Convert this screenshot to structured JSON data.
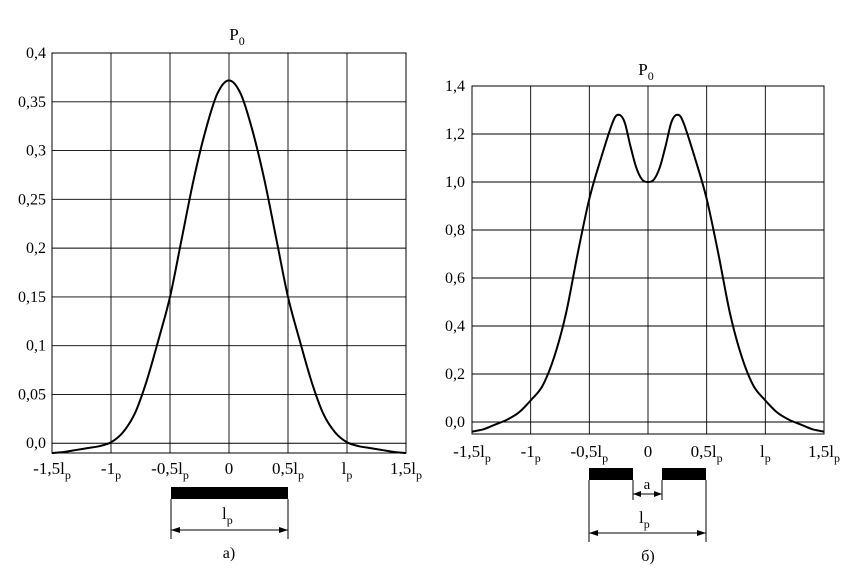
{
  "chart_data": [
    {
      "type": "line",
      "id": "a",
      "title": "P0",
      "xlabel": "",
      "ylabel": "",
      "xlim": [
        -1.5,
        1.5
      ],
      "ylim": [
        -0.01,
        0.4
      ],
      "grid": true,
      "x_ticks": [
        -1.5,
        -1,
        -0.5,
        0,
        0.5,
        1,
        1.5
      ],
      "x_tick_labels": [
        "-1,5l",
        "-1",
        "-0,5l",
        "0",
        "0,5l",
        "l",
        "1,5l"
      ],
      "x_tick_subscripts": [
        "p",
        "p",
        "p",
        "",
        "p",
        "p",
        "p"
      ],
      "y_ticks": [
        0.0,
        0.05,
        0.1,
        0.15,
        0.2,
        0.25,
        0.3,
        0.35,
        0.4
      ],
      "y_tick_labels": [
        "0,0",
        "0,05",
        "0,1",
        "0,15",
        "0,2",
        "0,25",
        "0,3",
        "0,35",
        "0,4"
      ],
      "series": [
        {
          "x": [
            -1.5,
            -1.4,
            -1.3,
            -1.2,
            -1.1,
            -1.0,
            -0.9,
            -0.8,
            -0.7,
            -0.6,
            -0.5,
            -0.4,
            -0.3,
            -0.2,
            -0.1,
            0.0,
            0.1,
            0.2,
            0.3,
            0.4,
            0.5,
            0.6,
            0.7,
            0.8,
            0.9,
            1.0,
            1.1,
            1.2,
            1.3,
            1.4,
            1.5
          ],
          "values": [
            -0.01,
            -0.009,
            -0.007,
            -0.005,
            -0.003,
            0.001,
            0.011,
            0.03,
            0.063,
            0.105,
            0.15,
            0.21,
            0.27,
            0.32,
            0.358,
            0.372,
            0.358,
            0.32,
            0.27,
            0.21,
            0.15,
            0.105,
            0.063,
            0.03,
            0.011,
            0.001,
            -0.003,
            -0.005,
            -0.007,
            -0.009,
            -0.01
          ]
        }
      ],
      "annotation": {
        "dimension_label": "l",
        "dimension_subscript": "p",
        "panel_label": "а)"
      }
    },
    {
      "type": "line",
      "id": "b",
      "title": "P0",
      "xlabel": "",
      "ylabel": "",
      "xlim": [
        -1.5,
        1.5
      ],
      "ylim": [
        -0.05,
        1.4
      ],
      "grid": true,
      "x_ticks": [
        -1.5,
        -1,
        -0.5,
        0,
        0.5,
        1,
        1.5
      ],
      "x_tick_labels": [
        "-1,5l",
        "-1",
        "-0,5l",
        "0",
        "0,5l",
        "l",
        "1,5l"
      ],
      "x_tick_subscripts": [
        "p",
        "p",
        "p",
        "",
        "p",
        "p",
        "p"
      ],
      "y_ticks": [
        0.0,
        0.2,
        0.4,
        0.6,
        0.8,
        1.0,
        1.2,
        1.4
      ],
      "y_tick_labels": [
        "0,0",
        "0,2",
        "0,4",
        "0,6",
        "0,8",
        "1,0",
        "1,2",
        "1,4"
      ],
      "series": [
        {
          "x": [
            -1.5,
            -1.4,
            -1.3,
            -1.2,
            -1.1,
            -1.0,
            -0.9,
            -0.8,
            -0.7,
            -0.6,
            -0.5,
            -0.4,
            -0.3,
            -0.25,
            -0.2,
            -0.15,
            -0.1,
            -0.05,
            0.0,
            0.05,
            0.1,
            0.15,
            0.2,
            0.25,
            0.3,
            0.4,
            0.5,
            0.6,
            0.7,
            0.8,
            0.9,
            1.0,
            1.1,
            1.2,
            1.3,
            1.4,
            1.5
          ],
          "values": [
            -0.04,
            -0.03,
            -0.01,
            0.01,
            0.04,
            0.09,
            0.15,
            0.27,
            0.45,
            0.7,
            0.93,
            1.1,
            1.25,
            1.28,
            1.25,
            1.15,
            1.06,
            1.01,
            1.0,
            1.01,
            1.06,
            1.15,
            1.25,
            1.28,
            1.25,
            1.1,
            0.93,
            0.7,
            0.45,
            0.27,
            0.15,
            0.09,
            0.04,
            0.01,
            -0.01,
            -0.03,
            -0.04
          ]
        }
      ],
      "annotation": {
        "gap_label": "a",
        "dimension_label": "l",
        "dimension_subscript": "p",
        "panel_label": "б)"
      }
    }
  ]
}
